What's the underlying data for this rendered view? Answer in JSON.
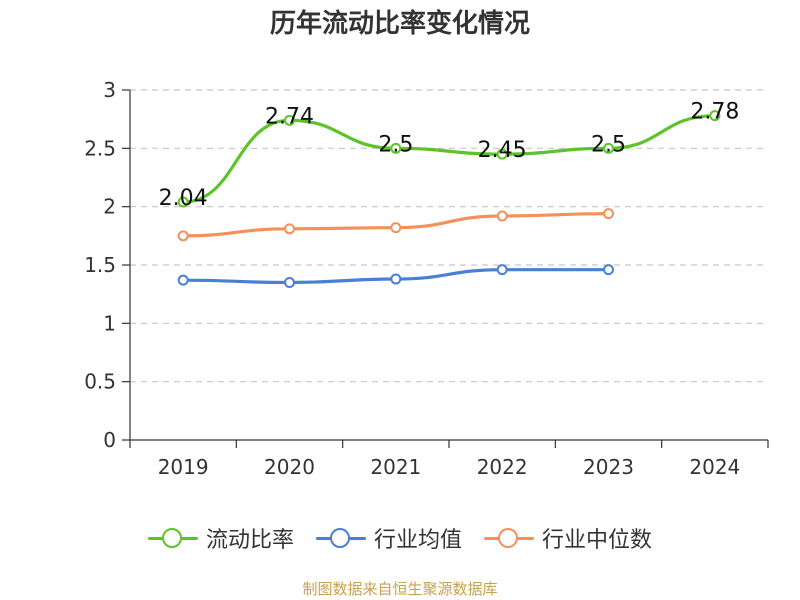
{
  "title": "历年流动比率变化情况",
  "source_note": "制图数据来自恒生聚源数据库",
  "chart_data": {
    "type": "line",
    "title": "历年流动比率变化情况",
    "xlabel": "",
    "ylabel": "",
    "categories": [
      "2019",
      "2020",
      "2021",
      "2022",
      "2023",
      "2024"
    ],
    "ylim": [
      0,
      3
    ],
    "yticks": [
      "0",
      "0.5",
      "1",
      "1.5",
      "2",
      "2.5",
      "3"
    ],
    "grid": true,
    "legend_position": "bottom",
    "series": [
      {
        "name": "流动比率",
        "color": "#5cc42a",
        "values": [
          2.04,
          2.74,
          2.5,
          2.45,
          2.5,
          2.78
        ],
        "labels": [
          "2.04",
          "2.74",
          "2.5",
          "2.45",
          "2.5",
          "2.78"
        ]
      },
      {
        "name": "行业均值",
        "color": "#4a7fd6",
        "values": [
          1.37,
          1.35,
          1.38,
          1.46,
          1.46,
          null
        ]
      },
      {
        "name": "行业中位数",
        "color": "#f5905a",
        "values": [
          1.75,
          1.81,
          1.82,
          1.92,
          1.94,
          null
        ]
      }
    ]
  }
}
